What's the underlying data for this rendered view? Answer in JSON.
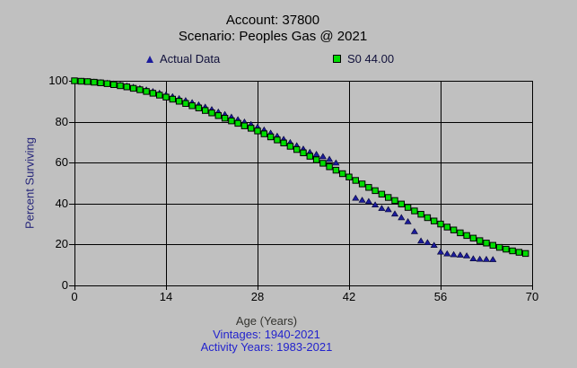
{
  "colors": {
    "background": "#c0c0c0",
    "grid": "#000000",
    "actual_marker": "#1c1c9c",
    "fitted_marker": "#00dd00",
    "fitted_marker_border": "#000000",
    "info_text": "#2323cd",
    "y_axis_title_text": "#26267a"
  },
  "header": {
    "title": "Account: 37800",
    "subtitle": "Scenario: Peoples Gas @ 2021"
  },
  "legend": {
    "items": [
      {
        "label": "Actual Data",
        "marker": "triangle",
        "color": "#1c1c9c"
      },
      {
        "label": "S0 44.00",
        "marker": "square",
        "color": "#00dd00"
      }
    ]
  },
  "axes": {
    "y_title": "Percent Surviving",
    "x_title": "Age (Years)"
  },
  "footnotes": {
    "vintages": "Vintages: 1940-2021",
    "activity_years": "Activity Years: 1983-2021"
  },
  "chart_data": {
    "type": "scatter",
    "title": "Account: 37800 — Scenario: Peoples Gas @ 2021",
    "xlabel": "Age (Years)",
    "ylabel": "Percent Surviving",
    "xlim": [
      0,
      70
    ],
    "ylim": [
      0,
      100
    ],
    "x_ticks": [
      0,
      14,
      28,
      42,
      56,
      70
    ],
    "y_ticks": [
      0,
      20,
      40,
      60,
      80,
      100
    ],
    "grid": true,
    "legend_position": "top",
    "series": [
      {
        "name": "Actual Data",
        "marker": "triangle",
        "color": "#1c1c9c",
        "x": [
          0,
          1,
          2,
          3,
          4,
          5,
          6,
          7,
          8,
          9,
          10,
          11,
          12,
          13,
          14,
          15,
          16,
          17,
          18,
          19,
          20,
          21,
          22,
          23,
          24,
          25,
          26,
          27,
          28,
          29,
          30,
          31,
          32,
          33,
          34,
          35,
          36,
          37,
          38,
          39,
          40,
          41,
          42,
          43,
          44,
          45,
          46,
          47,
          48,
          49,
          50,
          51,
          52,
          53,
          54,
          55,
          56,
          57,
          58,
          59,
          60,
          61,
          62,
          63,
          64
        ],
        "y": [
          100,
          99.9,
          99.8,
          99.6,
          99.3,
          99,
          98.6,
          98.1,
          97.6,
          97,
          96.4,
          95.7,
          94.9,
          94.1,
          93.3,
          92.4,
          91.5,
          90.5,
          89.5,
          88.4,
          87.3,
          86.1,
          84.9,
          83.7,
          82.4,
          81.2,
          80,
          78.8,
          77.5,
          76.1,
          74.6,
          73.1,
          71.6,
          70,
          68.4,
          66.8,
          65.2,
          64.2,
          63.1,
          61.8,
          60,
          54.6,
          53,
          42.8,
          41.8,
          41.2,
          39.5,
          37.8,
          37.2,
          35.1,
          33.3,
          31.3,
          26.5,
          21.9,
          21.1,
          19.8,
          16.5,
          15.6,
          15.2,
          15,
          14.6,
          13.2,
          13,
          12.9,
          12.8
        ]
      },
      {
        "name": "S0 44.00",
        "marker": "square",
        "color": "#00dd00",
        "x": [
          0,
          1,
          2,
          3,
          4,
          5,
          6,
          7,
          8,
          9,
          10,
          11,
          12,
          13,
          14,
          15,
          16,
          17,
          18,
          19,
          20,
          21,
          22,
          23,
          24,
          25,
          26,
          27,
          28,
          29,
          30,
          31,
          32,
          33,
          34,
          35,
          36,
          37,
          38,
          39,
          40,
          41,
          42,
          43,
          44,
          45,
          46,
          47,
          48,
          49,
          50,
          51,
          52,
          53,
          54,
          55,
          56,
          57,
          58,
          59,
          60,
          61,
          62,
          63,
          64,
          65,
          66,
          67,
          68,
          69
        ],
        "y": [
          100,
          99.8,
          99.6,
          99.3,
          99,
          98.6,
          98.1,
          97.6,
          97,
          96.3,
          95.6,
          94.8,
          93.9,
          93,
          92,
          91,
          90,
          88.9,
          87.8,
          86.7,
          85.5,
          84.3,
          83,
          81.7,
          80.4,
          79.2,
          78,
          76.8,
          75.5,
          74.1,
          72.6,
          71.1,
          69.6,
          68,
          66.4,
          64.8,
          63.1,
          61.4,
          59.7,
          58,
          56.3,
          54.6,
          53,
          51.3,
          49.6,
          47.9,
          46.3,
          44.6,
          43,
          41.5,
          39.8,
          38.1,
          36.4,
          34.8,
          33.1,
          31.5,
          30,
          28.5,
          27.1,
          25.7,
          24.4,
          23.1,
          21.9,
          20.7,
          19.6,
          18.6,
          17.7,
          16.9,
          16.2,
          15.6
        ]
      }
    ]
  }
}
